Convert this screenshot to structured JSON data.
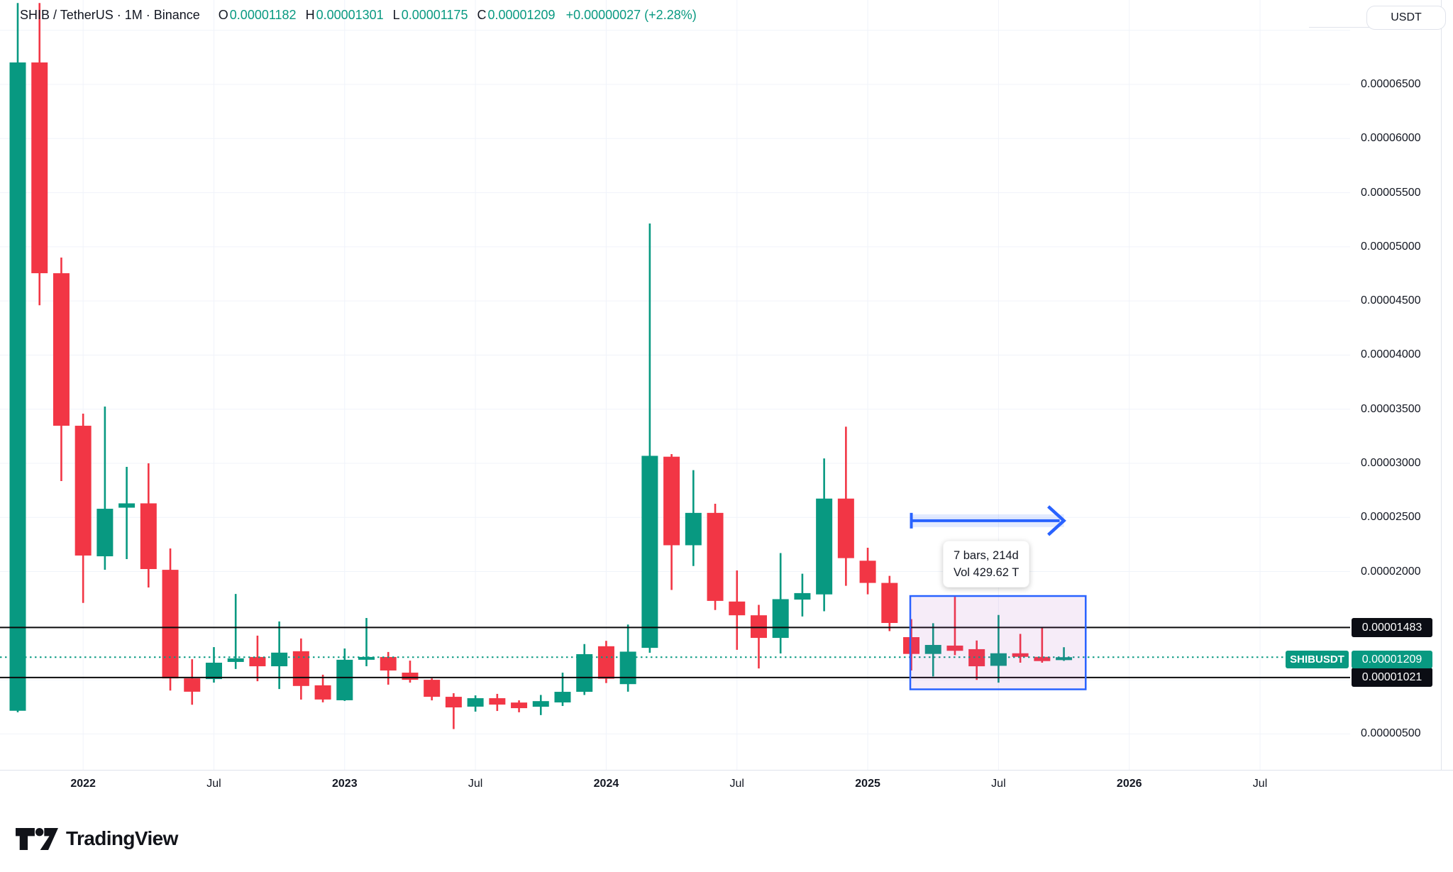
{
  "legend": {
    "title": "SHIB / TetherUS · 1M · Binance",
    "open_label": "O",
    "open": "0.00001182",
    "high_label": "H",
    "high": "0.00001301",
    "low_label": "L",
    "low": "0.00001175",
    "close_label": "C",
    "close": "0.00001209",
    "change": "+0.00000027 (+2.28%)"
  },
  "toolbar": {
    "currency_button": "USDT"
  },
  "footer": {
    "brand": "TradingView"
  },
  "colors": {
    "up": "#089981",
    "down": "#F23645",
    "text": "#131722",
    "grid": "#F0F3FA",
    "border": "#E0E3EB",
    "drawing_line": "#0B0B0B",
    "measure_blue": "#2962FF",
    "measure_fill": "rgba(171,71,188,0.10)",
    "arrow_band": "rgba(41,98,255,0.13)"
  },
  "chart_data": {
    "type": "candlestick",
    "symbol": "SHIBUSDT",
    "exchange": "Binance",
    "interval": "1M",
    "title": "SHIB / TetherUS · 1M · Binance",
    "grid": true,
    "y_axis": {
      "side": "right",
      "range_top": 7.5e-05,
      "range_bottom": 2.8e-06,
      "grid_prices": [
        7e-05,
        6.5e-05,
        6e-05,
        5.5e-05,
        5e-05,
        4.5e-05,
        4e-05,
        3.5e-05,
        3e-05,
        2.5e-05,
        2e-05,
        1.5e-05,
        1e-05,
        5e-06
      ],
      "visible_ticks": [
        {
          "price": 6.5e-05,
          "label": "0.00006500"
        },
        {
          "price": 6e-05,
          "label": "0.00006000"
        },
        {
          "price": 5.5e-05,
          "label": "0.00005500"
        },
        {
          "price": 5e-05,
          "label": "0.00005000"
        },
        {
          "price": 4.5e-05,
          "label": "0.00004500"
        },
        {
          "price": 4e-05,
          "label": "0.00004000"
        },
        {
          "price": 3.5e-05,
          "label": "0.00003500"
        },
        {
          "price": 3e-05,
          "label": "0.00003000"
        },
        {
          "price": 2.5e-05,
          "label": "0.00002500"
        },
        {
          "price": 2e-05,
          "label": "0.00002000"
        },
        {
          "price": 5e-06,
          "label": "0.00000500"
        }
      ]
    },
    "x_axis": {
      "ticks": [
        {
          "i": 3,
          "label": "2022",
          "major": true
        },
        {
          "i": 9,
          "label": "Jul",
          "major": false
        },
        {
          "i": 15,
          "label": "2023",
          "major": true
        },
        {
          "i": 21,
          "label": "Jul",
          "major": false
        },
        {
          "i": 27,
          "label": "2024",
          "major": true
        },
        {
          "i": 33,
          "label": "Jul",
          "major": false
        },
        {
          "i": 39,
          "label": "2025",
          "major": true
        },
        {
          "i": 45,
          "label": "Jul",
          "major": false
        },
        {
          "i": 51,
          "label": "2026",
          "major": true
        },
        {
          "i": 57,
          "label": "Jul",
          "major": false
        }
      ]
    },
    "levels": [
      {
        "price": 1.483e-05,
        "label": "0.00001483"
      },
      {
        "price": 1.021e-05,
        "label": "0.00001021"
      }
    ],
    "last_price": {
      "price": 1.209e-05,
      "label": "0.00001209",
      "badge": "SHIBUSDT"
    },
    "measure": {
      "line1": "7 bars, 214d",
      "line2": "Vol 429.62 T",
      "from_i": 41,
      "to_i": 49,
      "arrow_to_i": 48,
      "price_top": 1.774e-05,
      "price_bottom": 9.12e-06,
      "arrow_price": 2.47e-05
    },
    "candles": [
      {
        "t": "2021-10",
        "o": 7.14e-06,
        "h": 7.252e-05,
        "l": 7e-06,
        "c": 6.703e-05
      },
      {
        "t": "2021-11",
        "o": 6.703e-05,
        "h": 7.252e-05,
        "l": 4.46e-05,
        "c": 4.756e-05
      },
      {
        "t": "2021-12",
        "o": 4.756e-05,
        "h": 4.901e-05,
        "l": 2.836e-05,
        "c": 3.347e-05
      },
      {
        "t": "2022-01",
        "o": 3.347e-05,
        "h": 3.459e-05,
        "l": 1.71e-05,
        "c": 2.148e-05
      },
      {
        "t": "2022-02",
        "o": 2.141e-05,
        "h": 3.524e-05,
        "l": 2.017e-05,
        "c": 2.58e-05
      },
      {
        "t": "2022-03",
        "o": 2.59e-05,
        "h": 2.967e-05,
        "l": 2.115e-05,
        "c": 2.63e-05
      },
      {
        "t": "2022-04",
        "o": 2.63e-05,
        "h": 3e-05,
        "l": 1.853e-05,
        "c": 2.023e-05
      },
      {
        "t": "2022-05",
        "o": 2.016e-05,
        "h": 2.213e-05,
        "l": 9.01e-06,
        "c": 1.013e-05
      },
      {
        "t": "2022-06",
        "o": 1.013e-05,
        "h": 1.19e-05,
        "l": 7.7e-06,
        "c": 8.9e-06
      },
      {
        "t": "2022-07",
        "o": 1.007e-05,
        "h": 1.302e-05,
        "l": 9.74e-06,
        "c": 1.158e-05
      },
      {
        "t": "2022-08",
        "o": 1.165e-05,
        "h": 1.793e-05,
        "l": 1.1e-05,
        "c": 1.198e-05
      },
      {
        "t": "2022-09",
        "o": 1.211e-05,
        "h": 1.408e-05,
        "l": 9.87e-06,
        "c": 1.125e-05
      },
      {
        "t": "2022-10",
        "o": 1.125e-05,
        "h": 1.539e-05,
        "l": 9.15e-06,
        "c": 1.251e-05
      },
      {
        "t": "2022-11",
        "o": 1.264e-05,
        "h": 1.382e-05,
        "l": 8.17e-06,
        "c": 9.43e-06
      },
      {
        "t": "2022-12",
        "o": 9.49e-06,
        "h": 1.047e-05,
        "l": 7.92e-06,
        "c": 8.18e-06
      },
      {
        "t": "2023-01",
        "o": 8.11e-06,
        "h": 1.289e-05,
        "l": 8.05e-06,
        "c": 1.185e-05
      },
      {
        "t": "2023-02",
        "o": 1.185e-05,
        "h": 1.571e-05,
        "l": 1.125e-05,
        "c": 1.211e-05
      },
      {
        "t": "2023-03",
        "o": 1.211e-05,
        "h": 1.257e-05,
        "l": 9.55e-06,
        "c": 1.086e-05
      },
      {
        "t": "2023-04",
        "o": 1.066e-05,
        "h": 1.177e-05,
        "l": 9.74e-06,
        "c": 1e-05
      },
      {
        "t": "2023-05",
        "o": 1e-05,
        "h": 1.013e-05,
        "l": 8.1e-06,
        "c": 8.43e-06
      },
      {
        "t": "2023-06",
        "o": 8.43e-06,
        "h": 8.76e-06,
        "l": 5.45e-06,
        "c": 7.45e-06
      },
      {
        "t": "2023-07",
        "o": 7.52e-06,
        "h": 8.56e-06,
        "l": 7.06e-06,
        "c": 8.3e-06
      },
      {
        "t": "2023-08",
        "o": 8.3e-06,
        "h": 8.7e-06,
        "l": 7.12e-06,
        "c": 7.71e-06
      },
      {
        "t": "2023-09",
        "o": 7.9e-06,
        "h": 8.1e-06,
        "l": 7e-06,
        "c": 7.38e-06
      },
      {
        "t": "2023-10",
        "o": 7.51e-06,
        "h": 8.6e-06,
        "l": 6.74e-06,
        "c": 8.03e-06
      },
      {
        "t": "2023-11",
        "o": 7.91e-06,
        "h": 1.066e-05,
        "l": 7.58e-06,
        "c": 8.89e-06
      },
      {
        "t": "2023-12",
        "o": 8.89e-06,
        "h": 1.33e-05,
        "l": 8.6e-06,
        "c": 1.237e-05
      },
      {
        "t": "2024-01",
        "o": 1.31e-05,
        "h": 1.36e-05,
        "l": 9.7e-06,
        "c": 1.01e-05
      },
      {
        "t": "2024-02",
        "o": 9.6e-06,
        "h": 1.51e-05,
        "l": 8.9e-06,
        "c": 1.26e-05
      },
      {
        "t": "2024-03",
        "o": 1.295e-05,
        "h": 5.215e-05,
        "l": 1.25e-05,
        "c": 3.069e-05
      },
      {
        "t": "2024-04",
        "o": 3.061e-05,
        "h": 3.085e-05,
        "l": 1.83e-05,
        "c": 2.243e-05
      },
      {
        "t": "2024-05",
        "o": 2.243e-05,
        "h": 2.937e-05,
        "l": 2.051e-05,
        "c": 2.542e-05
      },
      {
        "t": "2024-06",
        "o": 2.542e-05,
        "h": 2.626e-05,
        "l": 1.645e-05,
        "c": 1.729e-05
      },
      {
        "t": "2024-07",
        "o": 1.723e-05,
        "h": 2.01e-05,
        "l": 1.277e-05,
        "c": 1.596e-05
      },
      {
        "t": "2024-08",
        "o": 1.596e-05,
        "h": 1.692e-05,
        "l": 1.105e-05,
        "c": 1.387e-05
      },
      {
        "t": "2024-09",
        "o": 1.387e-05,
        "h": 2.171e-05,
        "l": 1.243e-05,
        "c": 1.745e-05
      },
      {
        "t": "2024-10",
        "o": 1.741e-05,
        "h": 1.98e-05,
        "l": 1.585e-05,
        "c": 1.801e-05
      },
      {
        "t": "2024-11",
        "o": 1.789e-05,
        "h": 3.045e-05,
        "l": 1.633e-05,
        "c": 2.674e-05
      },
      {
        "t": "2024-12",
        "o": 2.674e-05,
        "h": 3.338e-05,
        "l": 1.868e-05,
        "c": 2.124e-05
      },
      {
        "t": "2025-01",
        "o": 2.1e-05,
        "h": 2.22e-05,
        "l": 1.79e-05,
        "c": 1.895e-05
      },
      {
        "t": "2025-02",
        "o": 1.895e-05,
        "h": 1.96e-05,
        "l": 1.45e-05,
        "c": 1.525e-05
      },
      {
        "t": "2025-03",
        "o": 1.394e-05,
        "h": 1.56e-05,
        "l": 1.086e-05,
        "c": 1.239e-05
      },
      {
        "t": "2025-04",
        "o": 1.239e-05,
        "h": 1.523e-05,
        "l": 1.031e-05,
        "c": 1.322e-05
      },
      {
        "t": "2025-05",
        "o": 1.316e-05,
        "h": 1.767e-05,
        "l": 1.228e-05,
        "c": 1.268e-05
      },
      {
        "t": "2025-06",
        "o": 1.283e-05,
        "h": 1.363e-05,
        "l": 9.99e-06,
        "c": 1.125e-05
      },
      {
        "t": "2025-07",
        "o": 1.129e-05,
        "h": 1.599e-05,
        "l": 9.74e-06,
        "c": 1.245e-05
      },
      {
        "t": "2025-08",
        "o": 1.245e-05,
        "h": 1.424e-05,
        "l": 1.158e-05,
        "c": 1.212e-05
      },
      {
        "t": "2025-09",
        "o": 1.212e-05,
        "h": 1.486e-05,
        "l": 1.158e-05,
        "c": 1.173e-05
      },
      {
        "t": "2025-10",
        "o": 1.182e-05,
        "h": 1.301e-05,
        "l": 1.175e-05,
        "c": 1.209e-05
      }
    ]
  }
}
